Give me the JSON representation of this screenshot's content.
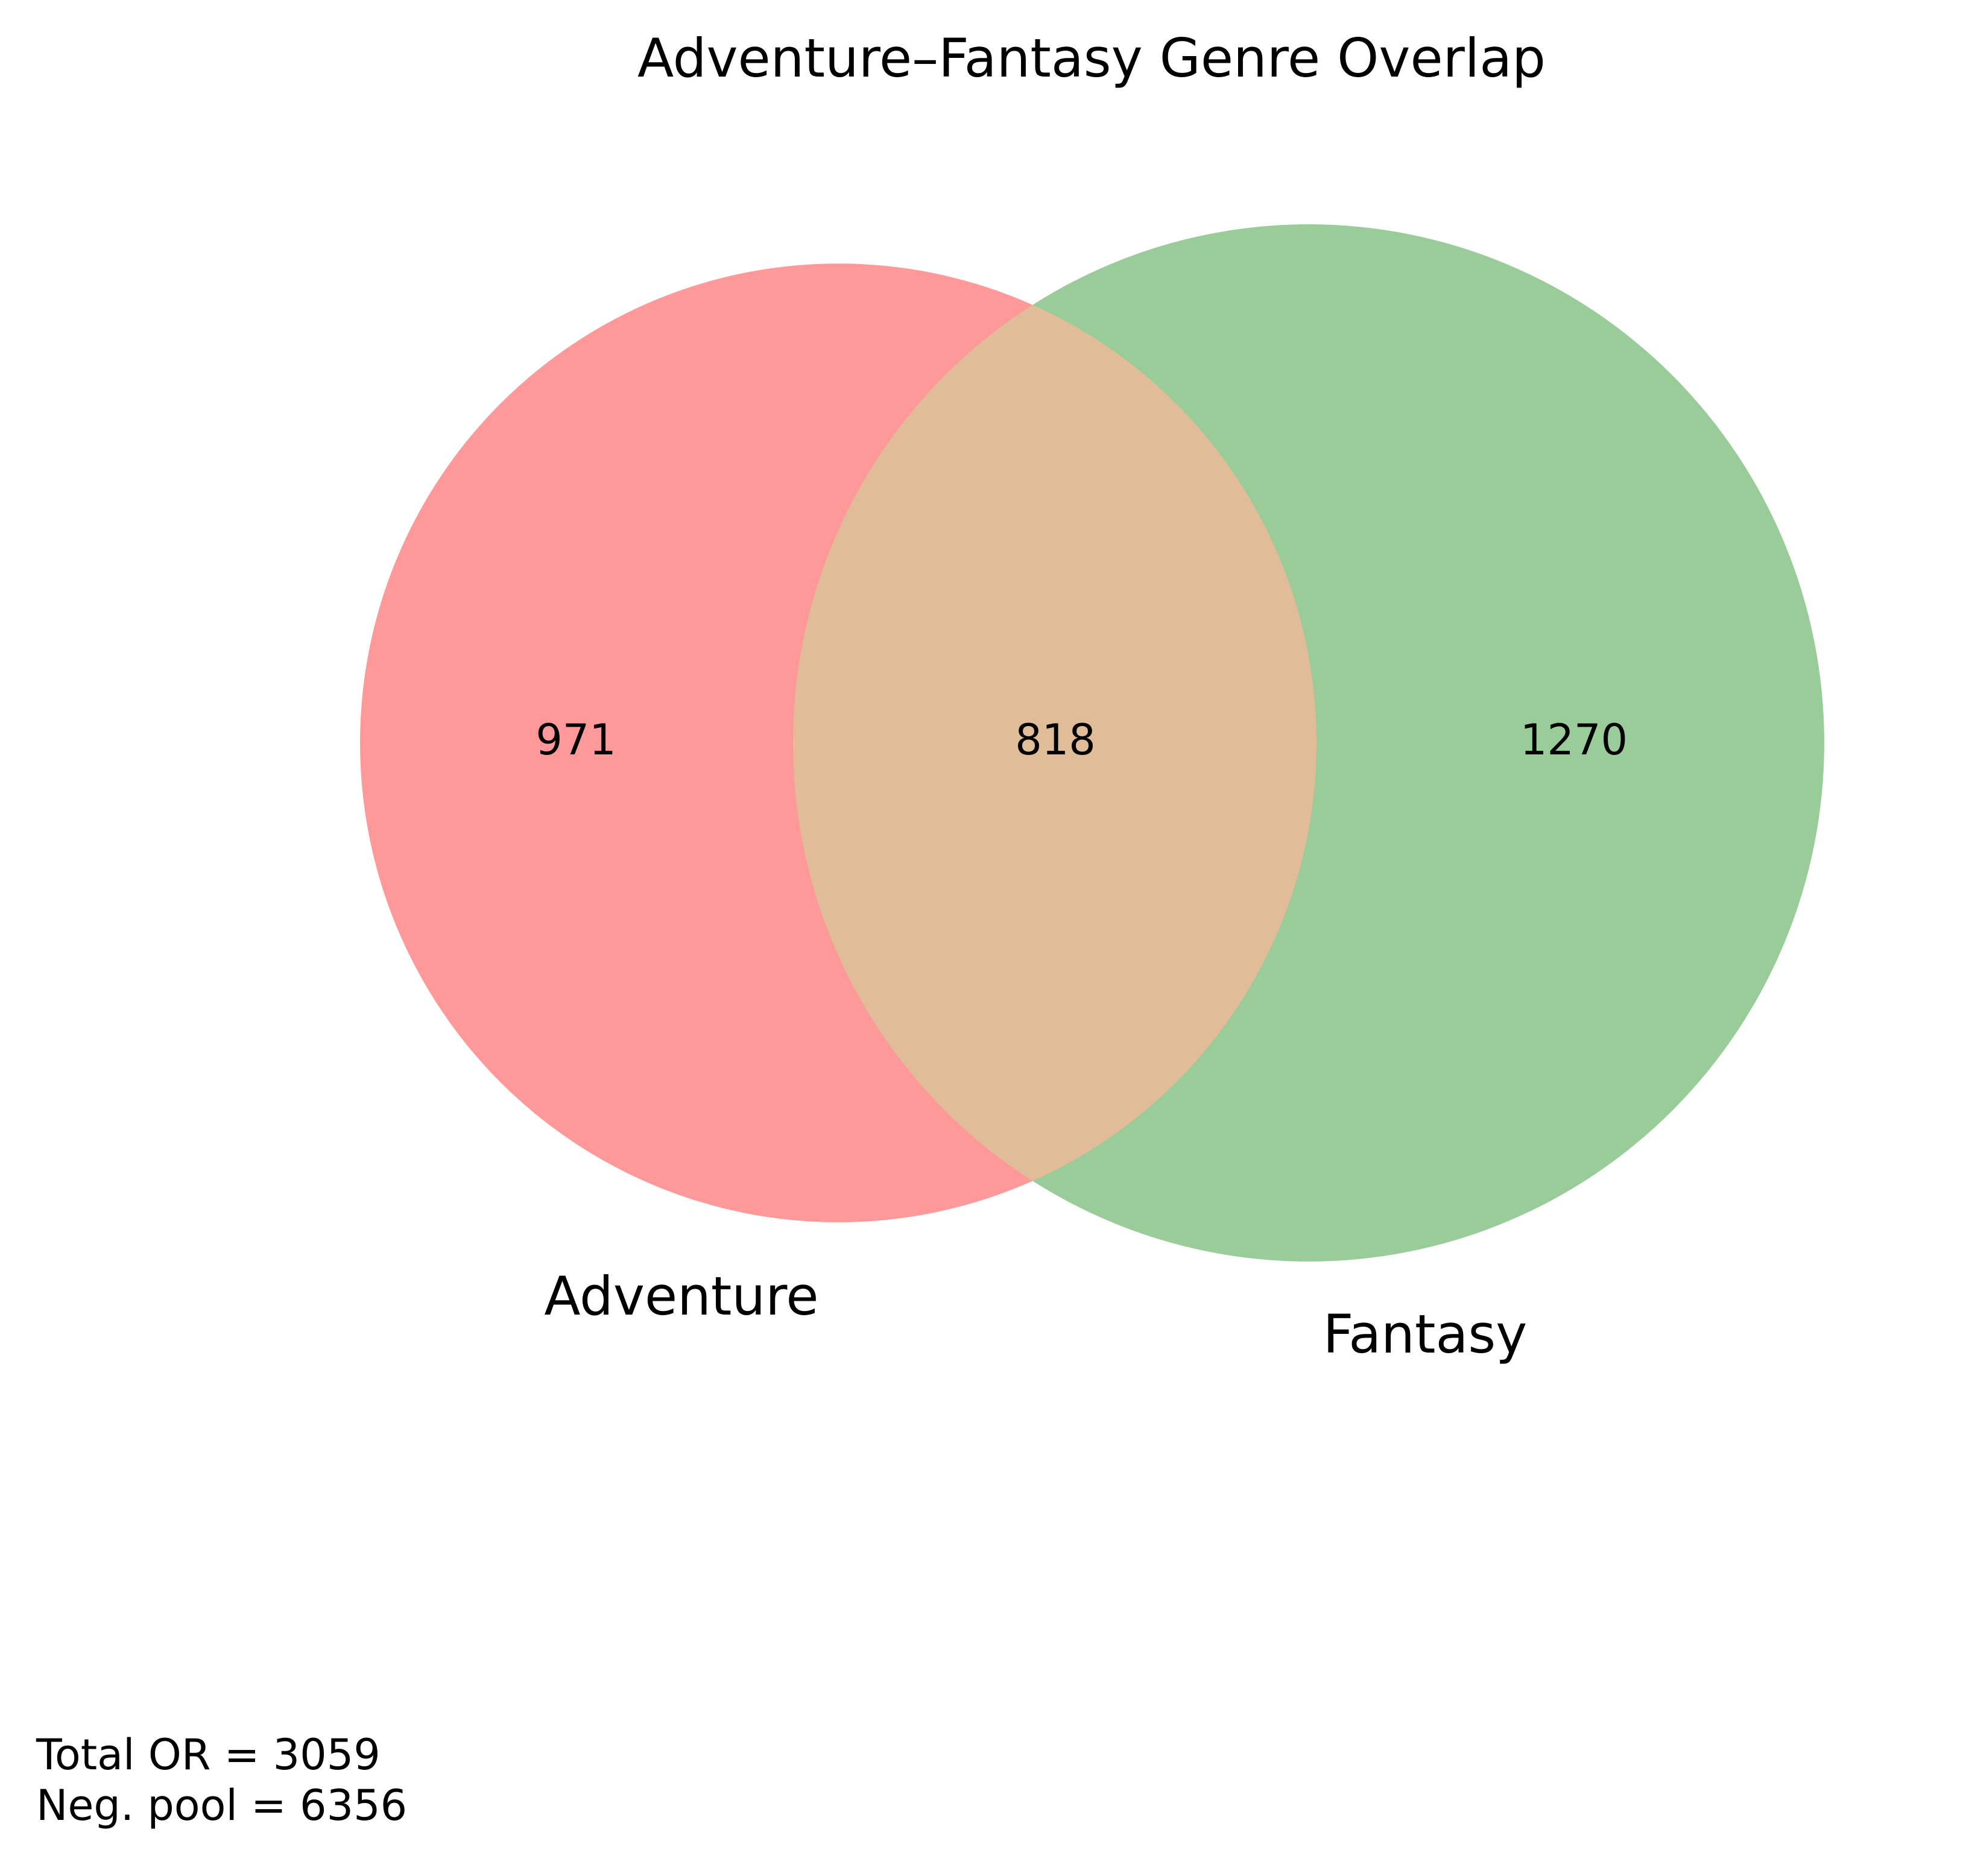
{
  "title": "Adventure–Fantasy Genre Overlap",
  "sets": [
    {
      "name": "Adventure",
      "only_count": "971",
      "color": "#ff9999"
    },
    {
      "name": "Fantasy",
      "only_count": "1270",
      "color": "#99cc99"
    }
  ],
  "intersection": {
    "count": "818",
    "color": "#e0bc98"
  },
  "footer": {
    "total": "Total OR = 3059",
    "neg_pool": "Neg. pool = 6356"
  },
  "chart_data": {
    "type": "venn",
    "title": "Adventure–Fantasy Genre Overlap",
    "sets": [
      "Adventure",
      "Fantasy"
    ],
    "regions": [
      {
        "sets": [
          "Adventure"
        ],
        "value": 971
      },
      {
        "sets": [
          "Adventure",
          "Fantasy"
        ],
        "value": 818
      },
      {
        "sets": [
          "Fantasy"
        ],
        "value": 1270
      }
    ]
  }
}
